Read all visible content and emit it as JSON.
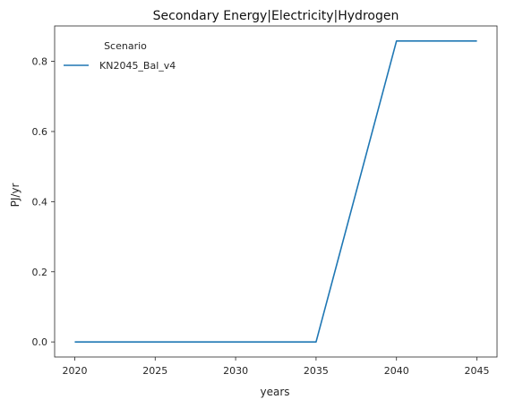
{
  "chart_data": {
    "type": "line",
    "title": "Secondary Energy|Electricity|Hydrogen",
    "xlabel": "years",
    "ylabel": "PJ/yr",
    "x": [
      2020,
      2025,
      2030,
      2035,
      2040,
      2045
    ],
    "series": [
      {
        "name": "KN2045_Bal_v4",
        "color": "#1f77b4",
        "values": [
          0.0,
          0.0,
          0.0,
          0.0,
          0.858,
          0.858
        ]
      }
    ],
    "xticks": [
      "2020",
      "2025",
      "2030",
      "2035",
      "2040",
      "2045"
    ],
    "yticks": [
      "0.0",
      "0.2",
      "0.4",
      "0.6",
      "0.8"
    ],
    "xlim": [
      2018.75,
      2046.25
    ],
    "ylim": [
      -0.043,
      0.901
    ],
    "legend": {
      "title": "Scenario",
      "placement": "top-left"
    },
    "grid": false
  }
}
